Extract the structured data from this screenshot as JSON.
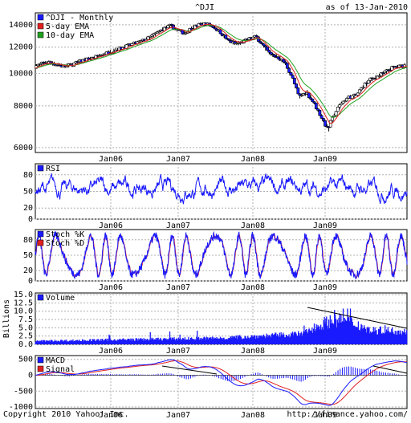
{
  "chart_data": {
    "type": "composite",
    "title": "^DJI",
    "as_of": "as of 13-Jan-2010",
    "copyright": "Copyright 2010 Yahoo! Inc.",
    "url": "http://finance.yahoo.com/",
    "x_ticks": [
      "Jan06",
      "Jan07",
      "Jan08",
      "Jan09"
    ],
    "colors": {
      "price": "#1a1aff",
      "ema5": "#e02020",
      "ema10": "#20a020",
      "rsi": "#1a1aff",
      "stoch_k": "#1a1aff",
      "stoch_d": "#e02020",
      "volume": "#1a1aff",
      "macd": "#1a1aff",
      "signal": "#e02020",
      "trend": "#000000",
      "grid": "#b0b0b0"
    },
    "panels": [
      {
        "id": "price",
        "type": "candlestick",
        "legend": [
          "^DJI - Monthly",
          "5-day EMA",
          "10-day EMA"
        ],
        "y_ticks": [
          6000,
          8000,
          10000,
          12000,
          14000
        ],
        "ylim": [
          5800,
          15200
        ],
        "log_scale": true,
        "close_series": [
          10500,
          10700,
          10800,
          10650,
          10500,
          10600,
          10800,
          11000,
          11100,
          11300,
          11500,
          11700,
          11900,
          12100,
          12300,
          12500,
          12800,
          13200,
          13600,
          13900,
          13500,
          13200,
          13700,
          14000,
          14100,
          13800,
          13300,
          12600,
          12300,
          12400,
          12700,
          12900,
          12100,
          11400,
          11200,
          10800,
          9800,
          8500,
          8800,
          8200,
          7500,
          6800,
          7600,
          8200,
          8500,
          8600,
          9200,
          9600,
          9800,
          10100,
          10400,
          10500,
          10600
        ]
      },
      {
        "id": "rsi",
        "type": "line",
        "legend": [
          "RSI"
        ],
        "y_ticks": [
          0,
          20,
          50,
          80
        ],
        "ylim": [
          0,
          100
        ],
        "reference_lines": [
          20,
          50,
          80
        ]
      },
      {
        "id": "stoch",
        "type": "line",
        "legend": [
          "Stoch %K",
          "Stoch %D"
        ],
        "y_ticks": [
          0,
          20,
          50,
          80
        ],
        "ylim": [
          0,
          100
        ],
        "reference_lines": [
          20,
          50,
          80
        ]
      },
      {
        "id": "volume",
        "type": "bar",
        "ylabel": "Billions",
        "legend": [
          "Volume"
        ],
        "y_ticks": [
          0.0,
          2.5,
          5.0,
          7.5,
          10.0,
          12.5,
          15.0
        ],
        "ylim": [
          0,
          15.5
        ]
      },
      {
        "id": "macd",
        "type": "line",
        "legend": [
          "MACD",
          "Signal"
        ],
        "y_ticks": [
          -1000,
          -500,
          0,
          500
        ],
        "ylim": [
          -1050,
          620
        ]
      }
    ]
  }
}
